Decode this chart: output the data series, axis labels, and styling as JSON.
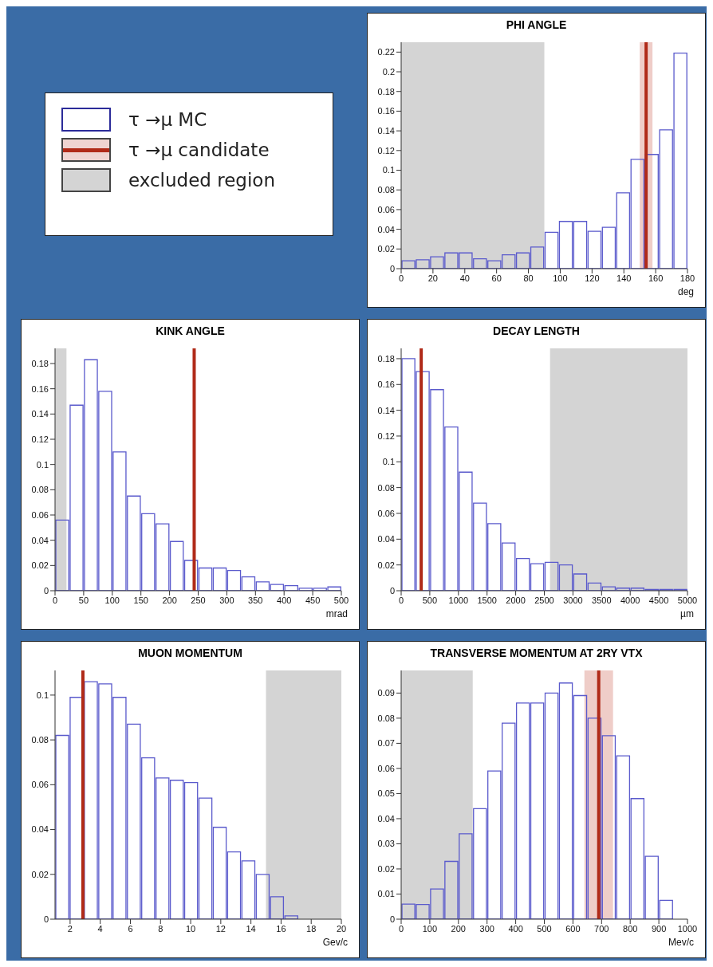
{
  "chart_data": [
    {
      "type": "other",
      "series": [
        {
          "name": "τ →μ MC",
          "color": "#2b2b99",
          "type": "histogram"
        },
        {
          "name": "τ →μ candidate",
          "color": "#b02a18",
          "type": "line"
        },
        {
          "name": "excluded region",
          "color": "#d4d4d4",
          "type": "area"
        }
      ]
    },
    {
      "type": "histogram",
      "title": "PHI ANGLE",
      "xlabel": "deg",
      "color": "#5a5acc",
      "bins": [
        0,
        9,
        18,
        27,
        36,
        45,
        54,
        63,
        72,
        81,
        90,
        99,
        108,
        117,
        126,
        135,
        144,
        153,
        162,
        171,
        180
      ],
      "values": [
        0.008,
        0.009,
        0.012,
        0.016,
        0.016,
        0.01,
        0.008,
        0.014,
        0.016,
        0.022,
        0.037,
        0.048,
        0.048,
        0.038,
        0.042,
        0.077,
        0.111,
        0.116,
        0.141,
        0.219
      ],
      "xlim": [
        0,
        180
      ],
      "xticks": [
        0,
        20,
        40,
        60,
        80,
        100,
        120,
        140,
        160,
        180
      ],
      "ylim": [
        0,
        0.23
      ],
      "yticks": [
        0,
        0.02,
        0.04,
        0.06,
        0.08,
        0.1,
        0.12,
        0.14,
        0.16,
        0.18,
        0.2,
        0.22
      ],
      "grid": false,
      "legend": false,
      "bands": [
        {
          "axis": "x",
          "from": 0,
          "to": 90,
          "color": "#d4d4d4"
        },
        {
          "axis": "x",
          "from": 150,
          "to": 158,
          "color": "#efcdc8"
        }
      ],
      "ref_lines": [
        {
          "axis": "x",
          "value": 154,
          "color": "#b02a18"
        }
      ]
    },
    {
      "type": "histogram",
      "title": "KINK ANGLE",
      "xlabel": "mrad",
      "color": "#5a5acc",
      "bins": [
        0,
        25,
        50,
        75,
        100,
        125,
        150,
        175,
        200,
        225,
        250,
        275,
        300,
        325,
        350,
        375,
        400,
        425,
        450,
        475,
        500
      ],
      "values": [
        0.056,
        0.147,
        0.183,
        0.158,
        0.11,
        0.075,
        0.061,
        0.053,
        0.039,
        0.024,
        0.018,
        0.018,
        0.016,
        0.011,
        0.007,
        0.005,
        0.004,
        0.002,
        0.002,
        0.003
      ],
      "xlim": [
        0,
        500
      ],
      "xticks": [
        0,
        50,
        100,
        150,
        200,
        250,
        300,
        350,
        400,
        450,
        500
      ],
      "ylim": [
        0,
        0.192
      ],
      "yticks": [
        0,
        0.02,
        0.04,
        0.06,
        0.08,
        0.1,
        0.12,
        0.14,
        0.16,
        0.18
      ],
      "grid": false,
      "legend": false,
      "bands": [
        {
          "axis": "x",
          "from": 0,
          "to": 20,
          "color": "#d4d4d4"
        }
      ],
      "ref_lines": [
        {
          "axis": "x",
          "value": 243,
          "color": "#b02a18"
        }
      ]
    },
    {
      "type": "histogram",
      "title": "DECAY LENGTH",
      "xlabel": "µm",
      "color": "#5a5acc",
      "bins": [
        0,
        250,
        500,
        750,
        1000,
        1250,
        1500,
        1750,
        2000,
        2250,
        2500,
        2750,
        3000,
        3250,
        3500,
        3750,
        4000,
        4250,
        4500,
        4750,
        5000
      ],
      "values": [
        0.18,
        0.17,
        0.156,
        0.127,
        0.092,
        0.068,
        0.052,
        0.037,
        0.025,
        0.021,
        0.022,
        0.02,
        0.013,
        0.006,
        0.003,
        0.002,
        0.002,
        0.001,
        0.001,
        0.001
      ],
      "xlim": [
        0,
        5000
      ],
      "xticks": [
        0,
        500,
        1000,
        1500,
        2000,
        2500,
        3000,
        3500,
        4000,
        4500,
        5000
      ],
      "ylim": [
        0,
        0.188
      ],
      "yticks": [
        0,
        0.02,
        0.04,
        0.06,
        0.08,
        0.1,
        0.12,
        0.14,
        0.16,
        0.18
      ],
      "grid": false,
      "legend": false,
      "bands": [
        {
          "axis": "x",
          "from": 2600,
          "to": 5000,
          "color": "#d4d4d4"
        }
      ],
      "ref_lines": [
        {
          "axis": "x",
          "value": 350,
          "color": "#b02a18"
        }
      ]
    },
    {
      "type": "histogram",
      "title": "MUON MOMENTUM",
      "xlabel": "Gev/c",
      "color": "#5a5acc",
      "bins": [
        1,
        1.95,
        2.9,
        3.85,
        4.8,
        5.75,
        6.7,
        7.65,
        8.6,
        9.55,
        10.5,
        11.45,
        12.4,
        13.35,
        14.3,
        15.25,
        16.2,
        17.15,
        18.1,
        19.05,
        20
      ],
      "values": [
        0.082,
        0.099,
        0.106,
        0.105,
        0.099,
        0.087,
        0.072,
        0.063,
        0.062,
        0.061,
        0.054,
        0.041,
        0.03,
        0.026,
        0.02,
        0.01,
        0.0015,
        0,
        0,
        0
      ],
      "xlim": [
        1,
        20
      ],
      "xticks": [
        2,
        4,
        6,
        8,
        10,
        12,
        14,
        16,
        18,
        20
      ],
      "ylim": [
        0,
        0.111
      ],
      "yticks": [
        0,
        0.02,
        0.04,
        0.06,
        0.08,
        0.1
      ],
      "grid": false,
      "legend": false,
      "bands": [
        {
          "axis": "x",
          "from": 15,
          "to": 20,
          "color": "#d4d4d4"
        }
      ],
      "ref_lines": [
        {
          "axis": "x",
          "value": 2.85,
          "color": "#b02a18"
        }
      ]
    },
    {
      "type": "histogram",
      "title": "TRANSVERSE MOMENTUM AT 2RY VTX",
      "xlabel": "Mev/c",
      "color": "#5a5acc",
      "bins": [
        0,
        50,
        100,
        150,
        200,
        250,
        300,
        350,
        400,
        450,
        500,
        550,
        600,
        650,
        700,
        750,
        800,
        850,
        900,
        950,
        1000
      ],
      "values": [
        0.006,
        0.0058,
        0.012,
        0.023,
        0.034,
        0.044,
        0.059,
        0.078,
        0.086,
        0.086,
        0.09,
        0.094,
        0.089,
        0.08,
        0.073,
        0.065,
        0.048,
        0.025,
        0.0075,
        0
      ],
      "xlim": [
        0,
        1000
      ],
      "xticks": [
        0,
        100,
        200,
        300,
        400,
        500,
        600,
        700,
        800,
        900,
        1000
      ],
      "ylim": [
        0,
        0.099
      ],
      "yticks": [
        0,
        0.01,
        0.02,
        0.03,
        0.04,
        0.05,
        0.06,
        0.07,
        0.08,
        0.09
      ],
      "grid": false,
      "legend": false,
      "bands": [
        {
          "axis": "x",
          "from": 0,
          "to": 250,
          "color": "#d4d4d4"
        },
        {
          "axis": "x",
          "from": 640,
          "to": 740,
          "color": "#efcdc8"
        }
      ],
      "ref_lines": [
        {
          "axis": "x",
          "value": 690,
          "color": "#b02a18"
        }
      ]
    }
  ]
}
